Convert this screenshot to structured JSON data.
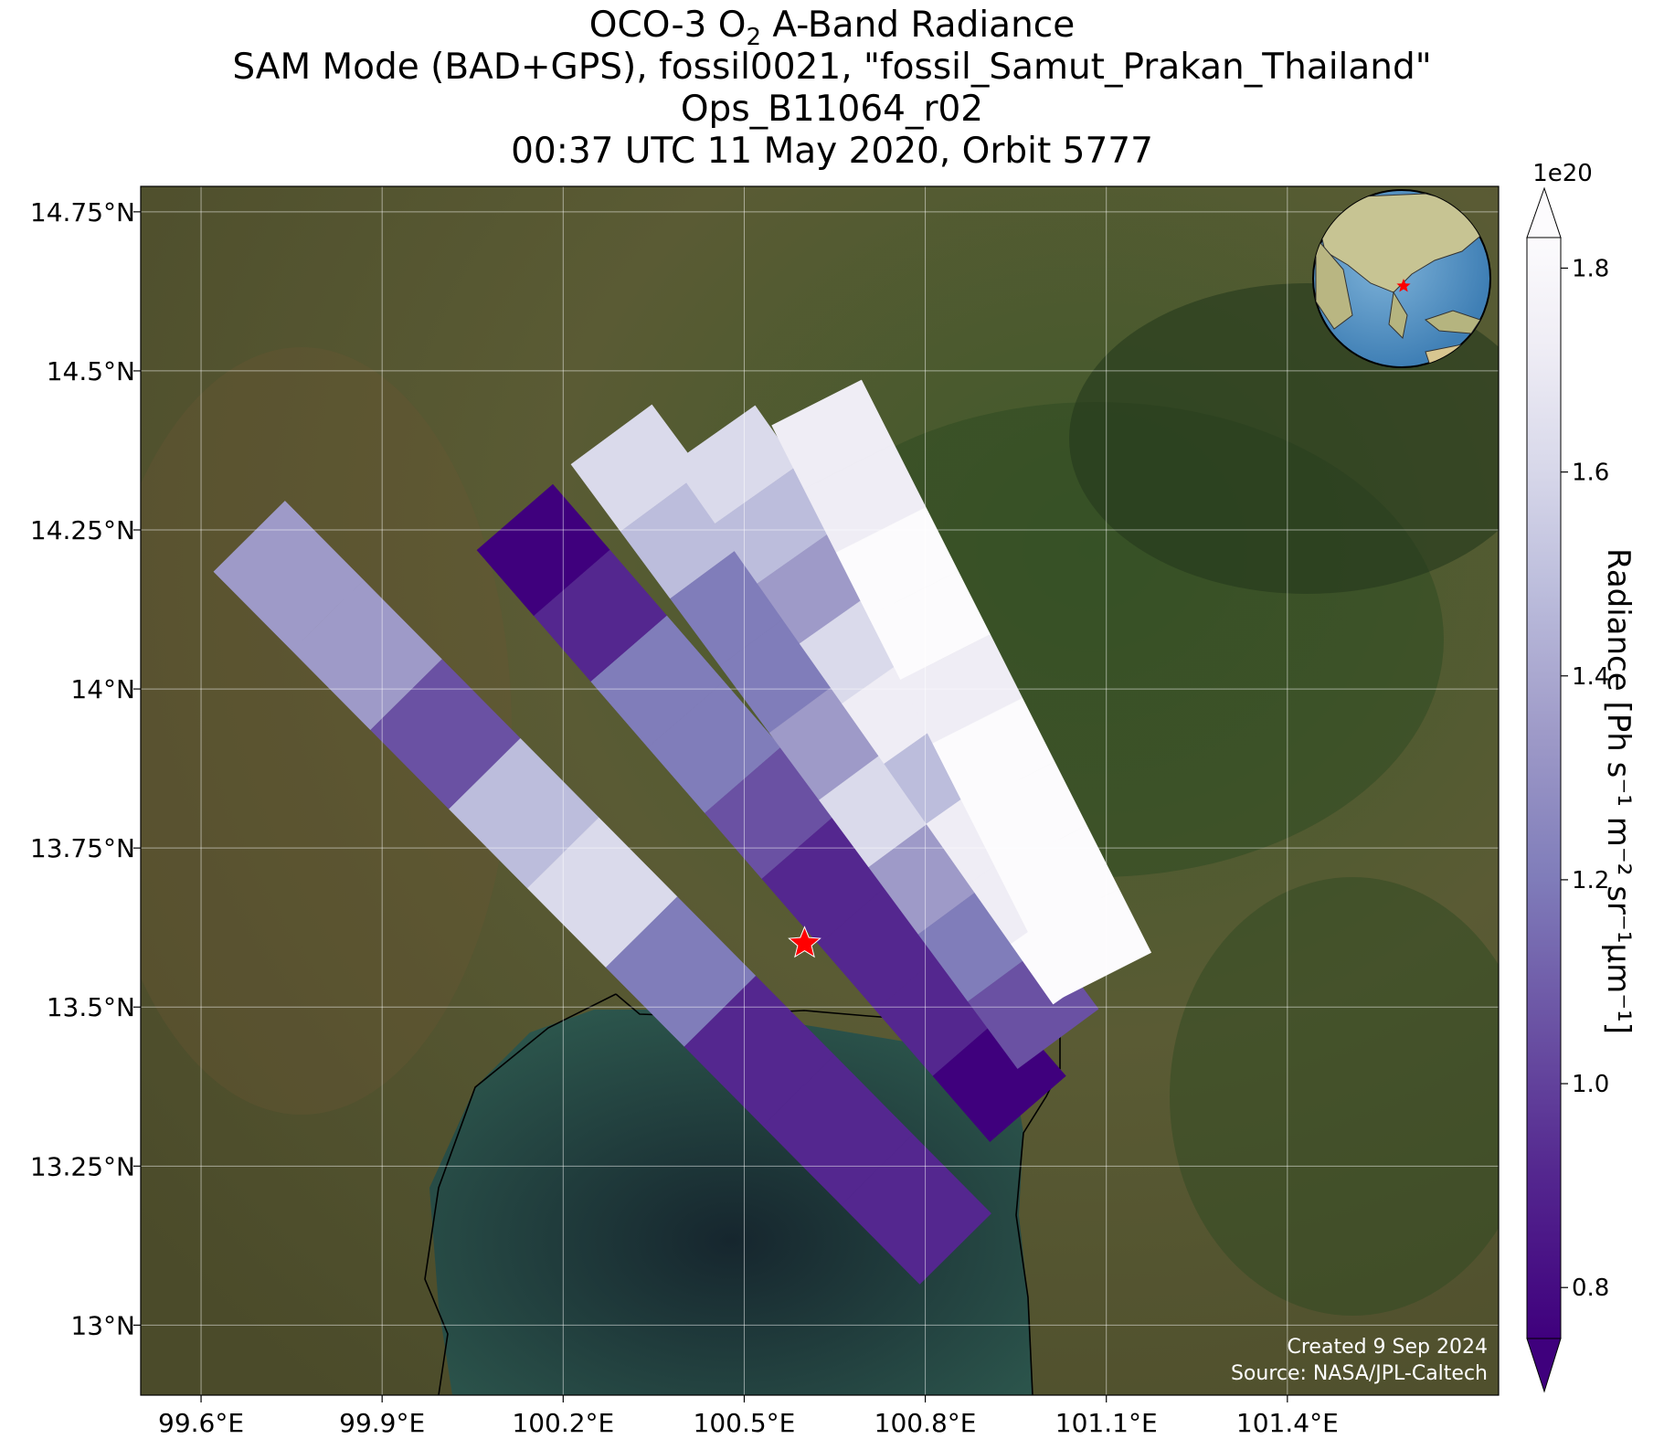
{
  "title": {
    "line1_prefix": "OCO-3 O",
    "line1_sub": "2",
    "line1_suffix": " A-Band Radiance",
    "line2": "SAM Mode (BAD+GPS), fossil0021, \"fossil_Samut_Prakan_Thailand\"",
    "line3": "Ops_B11064_r02",
    "line4": "00:37 UTC 11 May 2020, Orbit 5777"
  },
  "map": {
    "lon_range": [
      99.5,
      101.75
    ],
    "lat_range": [
      12.89,
      14.79
    ],
    "lat_ticks": [
      {
        "value": 14.75,
        "label": "14.75°N"
      },
      {
        "value": 14.5,
        "label": "14.5°N"
      },
      {
        "value": 14.25,
        "label": "14.25°N"
      },
      {
        "value": 14.0,
        "label": "14°N"
      },
      {
        "value": 13.75,
        "label": "13.75°N"
      },
      {
        "value": 13.5,
        "label": "13.5°N"
      },
      {
        "value": 13.25,
        "label": "13.25°N"
      },
      {
        "value": 13.0,
        "label": "13°N"
      }
    ],
    "lon_ticks": [
      {
        "value": 99.6,
        "label": "99.6°E"
      },
      {
        "value": 99.9,
        "label": "99.9°E"
      },
      {
        "value": 100.2,
        "label": "100.2°E"
      },
      {
        "value": 100.5,
        "label": "100.5°E"
      },
      {
        "value": 100.8,
        "label": "100.8°E"
      },
      {
        "value": 101.1,
        "label": "101.1°E"
      },
      {
        "value": 101.4,
        "label": "101.4°E"
      }
    ],
    "grid": true,
    "target_marker": {
      "lon": 100.6,
      "lat": 13.6,
      "color": "#ff0000",
      "icon": "star-icon"
    },
    "inset_globe": {
      "position": "top-right",
      "icon": "globe-icon"
    },
    "basemap": "satellite imagery",
    "credits": {
      "line1": "Created 9 Sep 2024",
      "line2": "Source: NASA/JPL-Caltech"
    }
  },
  "colorbar": {
    "label": "Radiance [Ph s⁻¹ m⁻² sr⁻¹μm⁻¹]",
    "multiplier": "1e20",
    "range": [
      0.75,
      1.83
    ],
    "extend": "both",
    "ticks": [
      {
        "value": 0.8,
        "label": "0.8"
      },
      {
        "value": 1.0,
        "label": "1.0"
      },
      {
        "value": 1.2,
        "label": "1.2"
      },
      {
        "value": 1.4,
        "label": "1.4"
      },
      {
        "value": 1.6,
        "label": "1.6"
      },
      {
        "value": 1.8,
        "label": "1.8"
      }
    ],
    "colormap": [
      "#3f007d",
      "#54278f",
      "#6a51a3",
      "#807dba",
      "#9e9ac8",
      "#bcbddc",
      "#dadaeb",
      "#efedf5",
      "#fcfbfd"
    ]
  },
  "swaths": [
    {
      "id": "swath-1",
      "start": {
        "lon": 99.68,
        "lat": 14.24
      },
      "end": {
        "lon": 100.85,
        "lat": 13.12
      },
      "values": [
        1.3,
        1.25,
        1.05,
        1.45,
        1.55,
        1.2,
        0.95,
        0.85,
        0.82
      ]
    },
    {
      "id": "swath-2",
      "start": {
        "lon": 100.12,
        "lat": 14.27
      },
      "end": {
        "lon": 100.97,
        "lat": 13.34
      },
      "values": [
        0.8,
        0.9,
        1.2,
        1.1,
        1.0,
        0.95,
        0.88,
        0.82,
        0.8
      ]
    },
    {
      "id": "swath-3",
      "start": {
        "lon": 100.28,
        "lat": 14.4
      },
      "end": {
        "lon": 101.02,
        "lat": 13.45
      },
      "values": [
        1.5,
        1.45,
        1.2,
        1.1,
        1.35,
        1.6,
        1.25,
        1.15,
        1.05
      ]
    },
    {
      "id": "swath-4",
      "start": {
        "lon": 100.45,
        "lat": 14.4
      },
      "end": {
        "lon": 101.08,
        "lat": 13.55
      },
      "values": [
        1.6,
        1.4,
        1.25,
        1.5,
        1.65,
        1.45,
        1.7,
        1.75,
        1.8
      ]
    },
    {
      "id": "swath-5",
      "start": {
        "lon": 100.62,
        "lat": 14.45
      },
      "end": {
        "lon": 101.1,
        "lat": 13.55
      },
      "values": [
        1.7,
        1.75,
        1.78,
        1.8,
        1.76,
        1.82,
        1.8,
        1.79,
        1.81
      ]
    }
  ]
}
